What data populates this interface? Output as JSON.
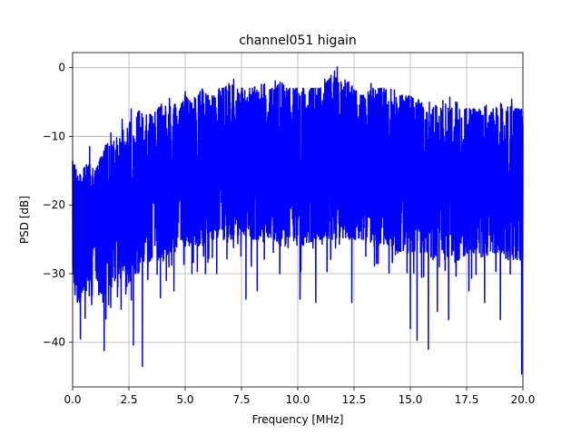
{
  "chart_data": {
    "type": "line",
    "title": "channel051 higain",
    "xlabel": "Frequency [MHz]",
    "ylabel": "PSD [dB]",
    "xlim": [
      0,
      20
    ],
    "ylim": [
      -46.5,
      2.2
    ],
    "xticks": [
      0,
      2.5,
      5,
      7.5,
      10,
      12.5,
      15,
      17.5,
      20
    ],
    "xtick_labels": [
      "0.0",
      "2.5",
      "5.0",
      "7.5",
      "10.0",
      "12.5",
      "15.0",
      "17.5",
      "20.0"
    ],
    "yticks": [
      0,
      -10,
      -20,
      -30,
      -40
    ],
    "ytick_labels": [
      "0",
      "−10",
      "−20",
      "−30",
      "−40"
    ],
    "grid": true,
    "series": [
      {
        "color": "#0000ff",
        "x": [
          0,
          0.25,
          0.5,
          0.75,
          1,
          1.25,
          1.5,
          1.75,
          2,
          2.25,
          2.5,
          2.75,
          3,
          3.25,
          3.5,
          3.75,
          4,
          4.25,
          4.5,
          4.75,
          5,
          5.25,
          5.5,
          5.75,
          6,
          6.25,
          6.5,
          6.75,
          7,
          7.25,
          7.5,
          7.75,
          8,
          8.25,
          8.5,
          8.75,
          9,
          9.25,
          9.5,
          9.75,
          10,
          10.25,
          10.5,
          10.75,
          11,
          11.25,
          11.5,
          11.75,
          12,
          12.25,
          12.5,
          12.75,
          13,
          13.25,
          13.5,
          13.75,
          14,
          14.25,
          14.5,
          14.75,
          15,
          15.25,
          15.5,
          15.75,
          16,
          16.25,
          16.5,
          16.75,
          17,
          17.25,
          17.5,
          17.75,
          18,
          18.25,
          18.5,
          18.75,
          19,
          19.25,
          19.5,
          19.75,
          20
        ],
        "upper": [
          -13,
          -16,
          -14,
          -14,
          -15,
          -13,
          -11,
          -11,
          -10,
          -9,
          -8,
          -7,
          -6,
          -6,
          -7,
          -6,
          -5,
          -6,
          -5,
          -5,
          -4,
          -5,
          -4,
          -3,
          -4,
          -4,
          -3,
          -3,
          -2,
          -3,
          -3,
          -3,
          -3,
          -2,
          -2,
          -3,
          -3,
          -2,
          -3,
          -3,
          -3,
          -3,
          -3,
          -3,
          -3,
          -2,
          -1,
          0,
          -3,
          -2,
          -3,
          -4,
          -4,
          -3,
          -3,
          -3,
          -3,
          -3,
          -4,
          -4,
          -4,
          -5,
          -4,
          -5,
          -5,
          -4,
          -5,
          -6,
          -5,
          -5,
          -6,
          -6,
          -6,
          -5,
          -6,
          -6,
          -5,
          -6,
          -5,
          -6,
          -6
        ],
        "lower": [
          -30,
          -35,
          -32,
          -31,
          -30,
          -33,
          -33,
          -32,
          -30,
          -30,
          -30,
          -30,
          -30,
          -29,
          -28,
          -28,
          -28,
          -27,
          -27,
          -26,
          -26,
          -26,
          -26,
          -26,
          -25,
          -25,
          -25,
          -25,
          -25,
          -25,
          -24,
          -25,
          -25,
          -25,
          -24,
          -25,
          -25,
          -26,
          -26,
          -25,
          -26,
          -26,
          -26,
          -25,
          -25,
          -25,
          -25,
          -25,
          -25,
          -25,
          -25,
          -25,
          -25,
          -26,
          -26,
          -26,
          -26,
          -26,
          -27,
          -27,
          -27,
          -27,
          -27,
          -27,
          -28,
          -27,
          -27,
          -27,
          -28,
          -28,
          -27,
          -27,
          -27,
          -28,
          -27,
          -27,
          -27,
          -28,
          -28,
          -28,
          -29
        ],
        "dips": [
          {
            "x": 0.35,
            "y": -39.5
          },
          {
            "x": 0.55,
            "y": -36.5
          },
          {
            "x": 0.85,
            "y": -34.5
          },
          {
            "x": 1.4,
            "y": -41.2
          },
          {
            "x": 1.7,
            "y": -37.3
          },
          {
            "x": 1.7,
            "y": -41.2
          },
          {
            "x": 2.15,
            "y": -35.2
          },
          {
            "x": 2.7,
            "y": -40.4
          },
          {
            "x": 3.1,
            "y": -43.5
          },
          {
            "x": 3.9,
            "y": -33.5
          },
          {
            "x": 4.5,
            "y": -32.5
          },
          {
            "x": 5.3,
            "y": -30
          },
          {
            "x": 5.9,
            "y": -30
          },
          {
            "x": 6.4,
            "y": -30
          },
          {
            "x": 7.7,
            "y": -33.7
          },
          {
            "x": 8.2,
            "y": -32.5
          },
          {
            "x": 9.2,
            "y": -30
          },
          {
            "x": 10.1,
            "y": -33.7
          },
          {
            "x": 10.8,
            "y": -34.2
          },
          {
            "x": 11.3,
            "y": -29.7
          },
          {
            "x": 12.4,
            "y": -34.2
          },
          {
            "x": 13.5,
            "y": -28.5
          },
          {
            "x": 14.2,
            "y": -28.4
          },
          {
            "x": 15,
            "y": -38
          },
          {
            "x": 15.3,
            "y": -39.7
          },
          {
            "x": 15.8,
            "y": -41
          },
          {
            "x": 16.2,
            "y": -35.5
          },
          {
            "x": 16.7,
            "y": -36.7
          },
          {
            "x": 17.6,
            "y": -32.5
          },
          {
            "x": 18.3,
            "y": -34.2
          },
          {
            "x": 19,
            "y": -36.7
          },
          {
            "x": 19.5,
            "y": -31.3
          },
          {
            "x": 19.95,
            "y": -44.6
          }
        ],
        "peaks": [
          {
            "x": 0.75,
            "y": -11.5
          },
          {
            "x": 1.7,
            "y": -9.5
          },
          {
            "x": 2.2,
            "y": -7.5
          },
          {
            "x": 2.6,
            "y": -6.0
          },
          {
            "x": 4.3,
            "y": -4.5
          },
          {
            "x": 5.0,
            "y": -3.5
          },
          {
            "x": 7.15,
            "y": -1.7
          },
          {
            "x": 9.0,
            "y": -1.9
          },
          {
            "x": 11.2,
            "y": -1.7
          },
          {
            "x": 11.75,
            "y": 0.1
          },
          {
            "x": 12.1,
            "y": -1.8
          },
          {
            "x": 13.25,
            "y": -2.3
          },
          {
            "x": 16.75,
            "y": -4.3
          },
          {
            "x": 19.5,
            "y": -4.6
          }
        ]
      }
    ]
  }
}
